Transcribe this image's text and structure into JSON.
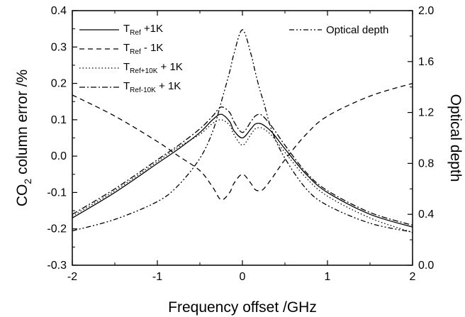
{
  "chart_data": {
    "type": "line",
    "x": [
      -2.0,
      -1.5,
      -1.0,
      -0.75,
      -0.5,
      -0.35,
      -0.25,
      -0.15,
      -0.1,
      0.0,
      0.1,
      0.15,
      0.2,
      0.25,
      0.35,
      0.5,
      0.75,
      1.0,
      1.5,
      2.0
    ],
    "x_label": "Frequency offset /GHz",
    "x_range": [
      -2,
      2
    ],
    "x_ticks": [
      -2,
      -1,
      0,
      1,
      2
    ],
    "y_left_label": {
      "pre": "CO",
      "sub": "2",
      "post": " column error /%"
    },
    "y_left_range": [
      -0.3,
      0.4
    ],
    "y_left_ticks": [
      "-0.3",
      "-0.2",
      "-0.1",
      "0.0",
      "0.1",
      "0.2",
      "0.3",
      "0.4"
    ],
    "y_right_label": "Optical depth",
    "y_right_range": [
      0.0,
      2.0
    ],
    "y_right_ticks": [
      "0.0",
      "0.4",
      "0.8",
      "1.2",
      "1.6",
      "2.0"
    ],
    "series": [
      {
        "name": {
          "pre": "T",
          "sub": "Ref",
          "post": " +1K"
        },
        "axis": "left",
        "dash": "",
        "values": [
          -0.17,
          -0.1,
          -0.02,
          0.02,
          0.065,
          0.1,
          0.115,
          0.095,
          0.07,
          0.05,
          0.075,
          0.088,
          0.09,
          0.085,
          0.065,
          0.02,
          -0.05,
          -0.1,
          -0.16,
          -0.195
        ]
      },
      {
        "name": {
          "pre": "T",
          "sub": "Ref",
          "post": " - 1K"
        },
        "axis": "left",
        "dash": "7 5",
        "values": [
          0.168,
          0.11,
          0.04,
          0.0,
          -0.04,
          -0.085,
          -0.12,
          -0.1,
          -0.075,
          -0.05,
          -0.075,
          -0.092,
          -0.095,
          -0.09,
          -0.06,
          -0.01,
          0.06,
          0.11,
          0.165,
          0.2
        ]
      },
      {
        "name": {
          "pre": "T",
          "sub": "Ref+10K",
          "post": " + 1K"
        },
        "axis": "left",
        "dash": "1.5 3",
        "values": [
          -0.165,
          -0.095,
          -0.015,
          0.025,
          0.06,
          0.09,
          0.1,
          0.085,
          0.06,
          0.03,
          0.06,
          0.075,
          0.078,
          0.075,
          0.055,
          0.01,
          -0.06,
          -0.11,
          -0.17,
          -0.21
        ]
      },
      {
        "name": {
          "pre": "T",
          "sub": "Ref-10K",
          "post": " + 1K"
        },
        "axis": "left",
        "dash": "8 3 2 3",
        "values": [
          -0.16,
          -0.09,
          -0.01,
          0.03,
          0.075,
          0.11,
          0.135,
          0.12,
          0.095,
          0.065,
          0.095,
          0.11,
          0.115,
          0.108,
          0.08,
          0.03,
          -0.045,
          -0.095,
          -0.155,
          -0.19
        ]
      },
      {
        "name": "Optical depth",
        "axis": "right",
        "dash": "7 3 2 3 2 3",
        "values": [
          0.27,
          0.36,
          0.5,
          0.63,
          0.84,
          1.05,
          1.28,
          1.52,
          1.66,
          1.85,
          1.66,
          1.52,
          1.39,
          1.28,
          1.05,
          0.84,
          0.6,
          0.47,
          0.33,
          0.26
        ]
      }
    ]
  }
}
